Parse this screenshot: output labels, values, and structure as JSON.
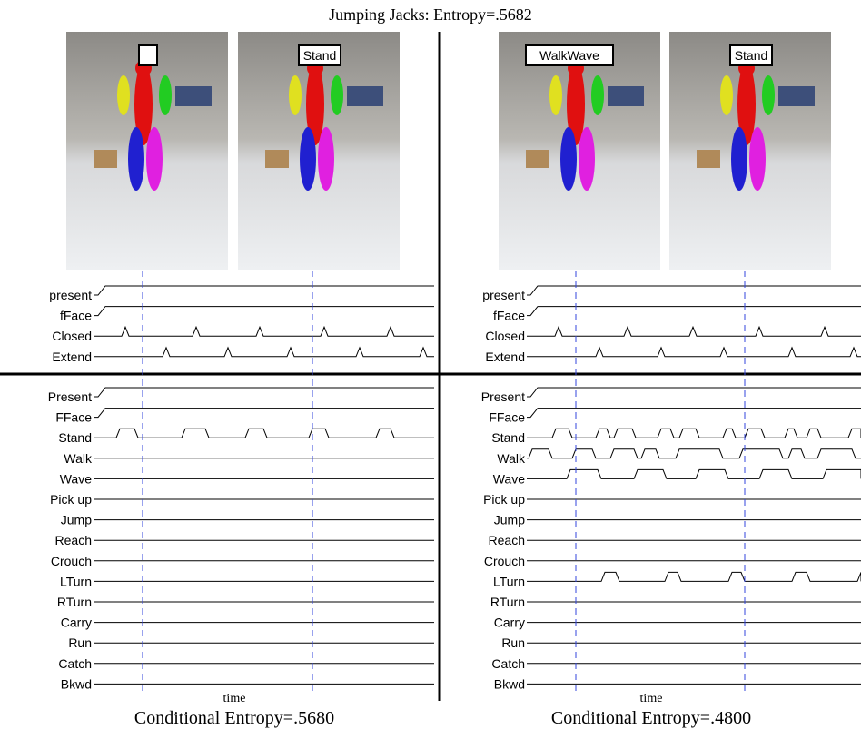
{
  "title": "Jumping Jacks: Entropy=.5682",
  "frames": [
    {},
    {
      "label": "Stand"
    },
    {
      "label": "WalkWave"
    },
    {
      "label": "Stand"
    }
  ],
  "panels": [
    {
      "top_signals": [
        "present",
        "fFace",
        "Closed",
        "Extend"
      ],
      "bottom_signals": [
        "Present",
        "FFace",
        "Stand",
        "Walk",
        "Wave",
        "Pick up",
        "Jump",
        "Reach",
        "Crouch",
        "LTurn",
        "RTurn",
        "Carry",
        "Run",
        "Catch",
        "Bkwd"
      ],
      "x_label": "time",
      "caption": "Conditional Entropy=.5680"
    },
    {
      "top_signals": [
        "present",
        "fFace",
        "Closed",
        "Extend"
      ],
      "bottom_signals": [
        "Present",
        "FFace",
        "Stand",
        "Walk",
        "Wave",
        "Pick up",
        "Jump",
        "Reach",
        "Crouch",
        "LTurn",
        "RTurn",
        "Carry",
        "Run",
        "Catch",
        "Bkwd"
      ],
      "x_label": "time",
      "caption": "Conditional Entropy=.4800"
    }
  ]
}
